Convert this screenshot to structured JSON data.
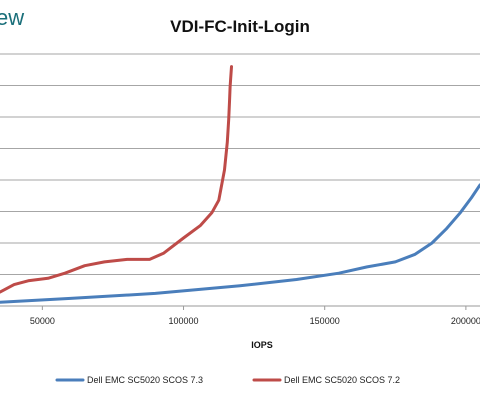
{
  "branding": {
    "watermark_text": "ew"
  },
  "chart_data": {
    "type": "line",
    "title": "VDI-FC-Init-Login",
    "xlabel": "IOPS",
    "ylabel": "",
    "xlim": [
      35000,
      205000
    ],
    "ylim": [
      0,
      10
    ],
    "x_ticks": [
      50000,
      100000,
      150000,
      200000
    ],
    "x_tick_labels": [
      "50000",
      "100000",
      "150000",
      "200000"
    ],
    "grid": {
      "horizontal": true,
      "vertical": false
    },
    "legend_position": "bottom",
    "series": [
      {
        "name": "Dell EMC SC5020 SCOS 7.3",
        "color": "#4a7ebb",
        "points": [
          [
            35000,
            0.15
          ],
          [
            60000,
            0.3
          ],
          [
            90000,
            0.5
          ],
          [
            120000,
            0.8
          ],
          [
            140000,
            1.05
          ],
          [
            155000,
            1.3
          ],
          [
            165000,
            1.55
          ],
          [
            175000,
            1.75
          ],
          [
            182000,
            2.05
          ],
          [
            188000,
            2.5
          ],
          [
            193000,
            3.05
          ],
          [
            198000,
            3.7
          ],
          [
            202000,
            4.3
          ],
          [
            205000,
            4.8
          ]
        ]
      },
      {
        "name": "Dell EMC SC5020 SCOS 7.2",
        "color": "#be4b48",
        "points": [
          [
            35000,
            0.55
          ],
          [
            40000,
            0.85
          ],
          [
            45000,
            1.0
          ],
          [
            52000,
            1.1
          ],
          [
            58000,
            1.3
          ],
          [
            65000,
            1.6
          ],
          [
            72000,
            1.75
          ],
          [
            80000,
            1.85
          ],
          [
            88000,
            1.85
          ],
          [
            93000,
            2.1
          ],
          [
            100000,
            2.7
          ],
          [
            106000,
            3.2
          ],
          [
            110000,
            3.7
          ],
          [
            112500,
            4.2
          ],
          [
            114500,
            5.4
          ],
          [
            115500,
            6.5
          ],
          [
            116000,
            7.4
          ],
          [
            116300,
            8.2
          ],
          [
            116500,
            8.7
          ],
          [
            117000,
            9.5
          ]
        ]
      }
    ]
  }
}
